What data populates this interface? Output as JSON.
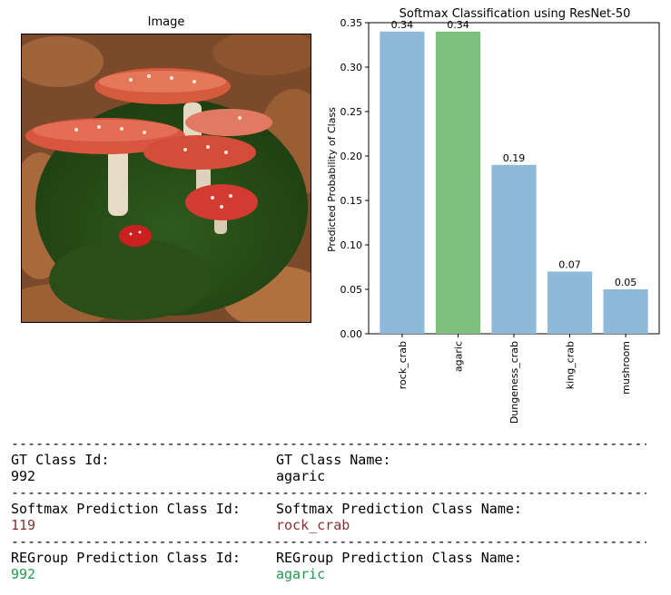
{
  "image_panel": {
    "title": "Image",
    "image_icon": "fly-agaric-mushroom-photo"
  },
  "chart_data": {
    "type": "bar",
    "title": "Softmax Classification using ResNet-50",
    "xlabel": "",
    "ylabel": "Predicted Probability of Class",
    "categories": [
      "rock_crab",
      "agaric",
      "Dungeness_crab",
      "king_crab",
      "mushroom"
    ],
    "values": [
      0.34,
      0.34,
      0.19,
      0.07,
      0.05
    ],
    "data_labels": [
      "0.34",
      "0.34",
      "0.19",
      "0.07",
      "0.05"
    ],
    "ylim": [
      0,
      0.35
    ],
    "yticks": [
      "0.00",
      "0.05",
      "0.10",
      "0.15",
      "0.20",
      "0.25",
      "0.30",
      "0.35"
    ],
    "grid": false,
    "colors": {
      "default": "#8fb9d8",
      "highlight": "#7cc07c",
      "highlight_category": "agaric"
    }
  },
  "info": {
    "divider": "-----------------------------------------------------------------------------------------",
    "gt_id_label": "GT Class Id:",
    "gt_id_value": "992",
    "gt_name_label": "GT Class Name:",
    "gt_name_value": "agaric",
    "softmax_id_label": "Softmax Prediction Class Id:",
    "softmax_id_value": "119",
    "softmax_name_label": "Softmax Prediction Class Name:",
    "softmax_name_value": "rock_crab",
    "regroup_id_label": "REGroup Prediction Class Id:",
    "regroup_id_value": "992",
    "regroup_name_label": "REGroup Prediction Class Name:",
    "regroup_name_value": "agaric"
  }
}
